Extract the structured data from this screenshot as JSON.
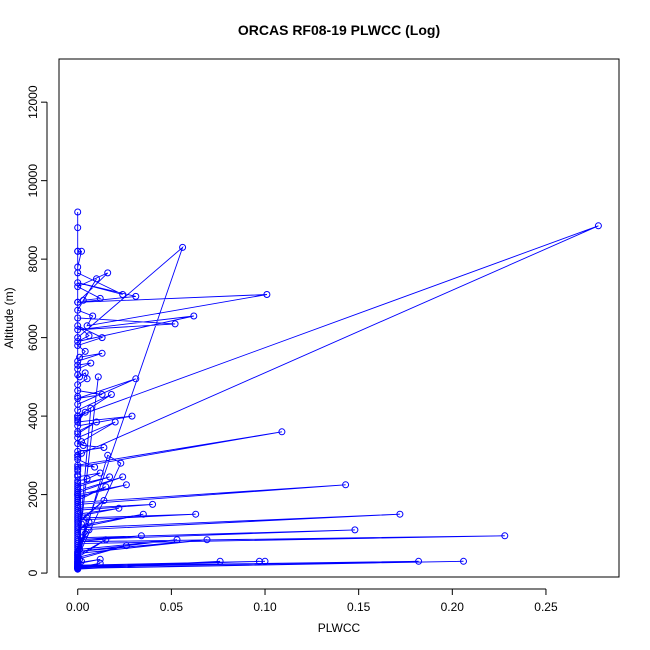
{
  "chart_data": {
    "type": "line",
    "title": "ORCAS RF08-19 PLWCC (Log)",
    "xlabel": "PLWCC",
    "ylabel": "Altitude (m)",
    "xlim": [
      -0.01,
      0.289
    ],
    "ylim": [
      -100,
      13100
    ],
    "xticks": [
      0.0,
      0.05,
      0.1,
      0.15,
      0.2,
      0.25
    ],
    "xtick_labels": [
      "0.00",
      "0.05",
      "0.10",
      "0.15",
      "0.20",
      "0.25"
    ],
    "yticks": [
      0,
      2000,
      4000,
      6000,
      8000,
      10000,
      12000
    ],
    "ytick_labels": [
      "0",
      "2000",
      "4000",
      "6000",
      "8000",
      "10000",
      "12000"
    ],
    "grid": false,
    "legend": "none",
    "series_color": "#0000ff",
    "series": [
      {
        "x": [
          0.0,
          0.0,
          0.0,
          0.002,
          0.0,
          0.0,
          0.024,
          0.0,
          0.031,
          0.0,
          0.016,
          0.0,
          0.012,
          0.003,
          0.01,
          0.0,
          0.008,
          0.005,
          0.101,
          0.0,
          0.0,
          0.052,
          0.0,
          0.062,
          0.0,
          0.006,
          0.0,
          0.013,
          0.0,
          0.004,
          0.001,
          0.013,
          0.0,
          0.0,
          0.007,
          0.0,
          0.0,
          0.001,
          0.004,
          0.005,
          0.0,
          0.0,
          0.013,
          0.0,
          0.031,
          0.0,
          0.0,
          0.018,
          0.0,
          0.0,
          0.0,
          0.004,
          0.0,
          0.029,
          0.0,
          0.0,
          0.01,
          0.0,
          0.0,
          0.02,
          0.002,
          0.0,
          0.003,
          0.014,
          0.0,
          0.0,
          0.002,
          0.0,
          0.0,
          0.009,
          0.0,
          0.109,
          0.0,
          0.0,
          0.0,
          0.0,
          0.0,
          0.012,
          0.005,
          0.0,
          0.0,
          0.0,
          0.017,
          0.0,
          0.0,
          0.0,
          0.024,
          0.0,
          0.0,
          0.026,
          0.0,
          0.0,
          0.015,
          0.0,
          0.0,
          0.143,
          0.0,
          0.0,
          0.0,
          0.04,
          0.0,
          0.0,
          0.0,
          0.022,
          0.0,
          0.0,
          0.063,
          0.0,
          0.0,
          0.014,
          0.0,
          0.0,
          0.035,
          0.0,
          0.172,
          0.0,
          0.006,
          0.0,
          0.0,
          0.002,
          0.0,
          0.0,
          0.148,
          0.0,
          0.034,
          0.0,
          0.228,
          0.0,
          0.0,
          0.006,
          0.0,
          0.0,
          0.053,
          0.0,
          0.069,
          0.0,
          0.0,
          0.015,
          0.0,
          0.026,
          0.0,
          0.0,
          0.001,
          0.0,
          0.0,
          0.012,
          0.0,
          0.0,
          0.002,
          0.0,
          0.0,
          0.182,
          0.0,
          0.0,
          0.012,
          0.0,
          0.0,
          0.206,
          0.0,
          0.0,
          0.0,
          0.076,
          0.0,
          0.0,
          0.097,
          0.0,
          0.1,
          0.0,
          0.001,
          0.005,
          0.0,
          0.002,
          0.0,
          0.0,
          0.004,
          0.0,
          0.0,
          0.016,
          0.023,
          0.0,
          0.007,
          0.0,
          0.0,
          0.011,
          0.0,
          0.0,
          0.0,
          0.056,
          0.0,
          0.0,
          0.0,
          0.278,
          0.0,
          0.0,
          0.0,
          0.0
        ],
        "y": [
          9200,
          8800,
          8200,
          8200,
          7800,
          7650,
          7100,
          7400,
          7050,
          6900,
          7650,
          7300,
          7000,
          6950,
          7500,
          6700,
          6550,
          6300,
          7100,
          6900,
          6500,
          6350,
          6200,
          6550,
          5900,
          6050,
          6300,
          6000,
          5800,
          5650,
          5500,
          5600,
          5400,
          5300,
          5350,
          5200,
          5050,
          5000,
          5100,
          4950,
          4800,
          4650,
          4550,
          4450,
          4950,
          4300,
          4150,
          4550,
          4000,
          3950,
          3900,
          4100,
          3850,
          4000,
          3750,
          3600,
          3850,
          3550,
          3450,
          3850,
          3350,
          3300,
          3250,
          3200,
          3100,
          3000,
          3050,
          2950,
          2900,
          2700,
          2750,
          3600,
          2700,
          2600,
          2650,
          2500,
          2450,
          2550,
          2400,
          2350,
          2300,
          2250,
          2450,
          2200,
          2150,
          2100,
          2450,
          2050,
          2000,
          2250,
          1950,
          1900,
          2200,
          1850,
          1800,
          2250,
          1750,
          1700,
          1650,
          1750,
          1600,
          1550,
          1500,
          1650,
          1450,
          1400,
          1500,
          1350,
          1300,
          1850,
          1250,
          1200,
          1500,
          1150,
          1500,
          1100,
          1300,
          1050,
          1000,
          1250,
          950,
          900,
          1100,
          850,
          950,
          800,
          950,
          750,
          700,
          1100,
          650,
          600,
          850,
          550,
          850,
          500,
          450,
          850,
          400,
          700,
          350,
          300,
          350,
          280,
          260,
          350,
          240,
          220,
          300,
          200,
          180,
          300,
          160,
          150,
          250,
          140,
          130,
          300,
          120,
          110,
          100,
          300,
          120,
          150,
          300,
          180,
          300,
          200,
          600,
          1400,
          230,
          900,
          260,
          300,
          1000,
          330,
          360,
          3000,
          2800,
          390,
          4200,
          420,
          450,
          5000,
          480,
          510,
          540,
          8300,
          6000,
          4500,
          4000,
          8850,
          3000,
          2500,
          2000,
          8200
        ]
      }
    ]
  }
}
